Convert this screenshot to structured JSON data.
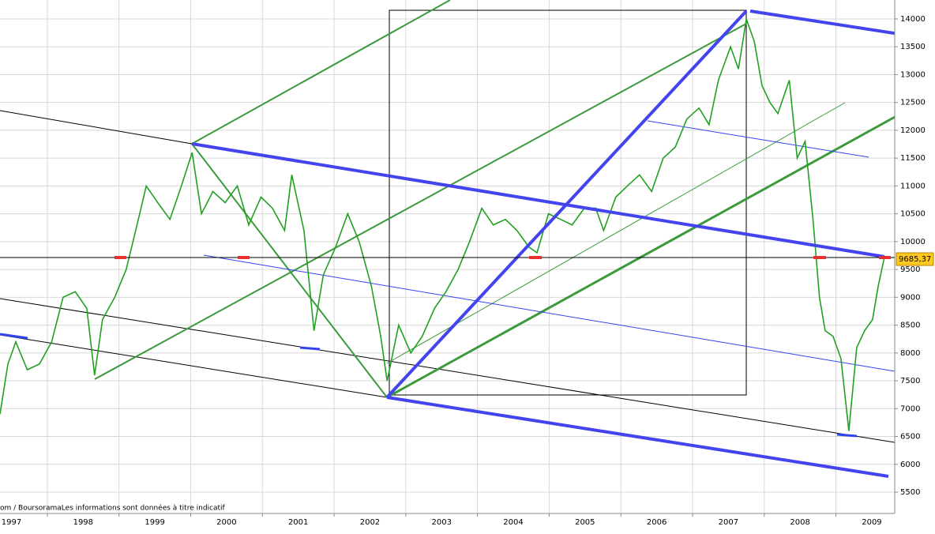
{
  "chart_data": {
    "type": "line",
    "footer": "om / BoursoramaLes informations sont données à titre indicatif",
    "x": [
      1997.34,
      1997.45,
      1997.56,
      1997.72,
      1997.89,
      1998.06,
      1998.22,
      1998.39,
      1998.55,
      1998.66,
      1998.77,
      1998.94,
      1999.1,
      1999.27,
      1999.38,
      1999.54,
      1999.71,
      1999.87,
      2000.02,
      2000.15,
      2000.31,
      2000.48,
      2000.65,
      2000.81,
      2000.98,
      2001.14,
      2001.31,
      2001.41,
      2001.58,
      2001.72,
      2001.85,
      2002.02,
      2002.19,
      2002.35,
      2002.52,
      2002.65,
      2002.74,
      2002.9,
      2003.07,
      2003.23,
      2003.4,
      2003.56,
      2003.73,
      2003.89,
      2004.06,
      2004.22,
      2004.39,
      2004.55,
      2004.72,
      2004.83,
      2004.99,
      2005.16,
      2005.32,
      2005.49,
      2005.65,
      2005.76,
      2005.93,
      2006.09,
      2006.26,
      2006.43,
      2006.59,
      2006.76,
      2006.92,
      2007.09,
      2007.23,
      2007.36,
      2007.53,
      2007.64,
      2007.75,
      2007.86,
      2007.97,
      2008.08,
      2008.19,
      2008.35,
      2008.46,
      2008.57,
      2008.68,
      2008.77,
      2008.85,
      2008.96,
      2009.07,
      2009.18,
      2009.29,
      2009.4,
      2009.51,
      2009.59,
      2009.67
    ],
    "series": [
      {
        "color": "#22a022",
        "values": [
          6900,
          7800,
          8200,
          7700,
          7800,
          8200,
          9000,
          9100,
          8800,
          7600,
          8600,
          9000,
          9500,
          10400,
          11000,
          10700,
          10400,
          11000,
          11600,
          10500,
          10900,
          10700,
          11000,
          10300,
          10800,
          10600,
          10200,
          11200,
          10200,
          8400,
          9400,
          9900,
          10500,
          10000,
          9200,
          8300,
          7500,
          8500,
          8000,
          8300,
          8800,
          9100,
          9500,
          10000,
          10600,
          10300,
          10400,
          10200,
          9900,
          9800,
          10500,
          10400,
          10300,
          10600,
          10600,
          10200,
          10800,
          11000,
          11200,
          10900,
          11500,
          11700,
          12200,
          12400,
          12100,
          12900,
          13500,
          13100,
          14000,
          13600,
          12800,
          12500,
          12300,
          12900,
          11500,
          11800,
          10400,
          9000,
          8400,
          8300,
          7900,
          6600,
          8100,
          8400,
          8600,
          9200,
          9685.37
        ]
      }
    ],
    "last": {
      "value": 9685.37,
      "label": "9685,37"
    },
    "xlim": [
      1997.34,
      2009.82
    ],
    "xticks": [
      1997,
      1998,
      1999,
      2000,
      2001,
      2002,
      2003,
      2004,
      2005,
      2006,
      2007,
      2008,
      2009
    ],
    "ylim": [
      5117,
      14340
    ],
    "yticks": [
      5500,
      6000,
      6500,
      7000,
      7500,
      8000,
      8500,
      9000,
      9500,
      10000,
      10500,
      11000,
      11500,
      12000,
      12500,
      13000,
      13500,
      14000
    ],
    "grid": true
  }
}
